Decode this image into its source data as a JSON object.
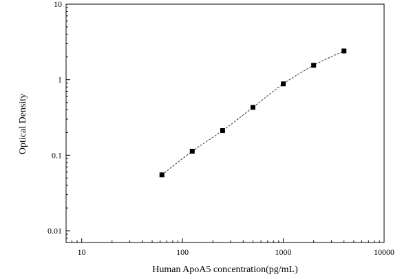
{
  "chart_data": {
    "type": "scatter",
    "title": "",
    "xlabel": "Human ApoA5 concentration(pg/mL)",
    "ylabel": "Optical Density",
    "x_scale": "log",
    "y_scale": "log",
    "xlim": [
      7,
      10000
    ],
    "ylim": [
      0.007,
      10
    ],
    "x_ticks": [
      10,
      100,
      1000,
      10000
    ],
    "x_tick_labels": [
      "10",
      "100",
      "1000",
      "10000"
    ],
    "y_ticks": [
      0.01,
      0.1,
      1,
      10
    ],
    "y_tick_labels": [
      "0.01",
      "0.1",
      "1",
      "10"
    ],
    "grid": false,
    "legend": "none",
    "marker": "square",
    "fit_curve": "dashed",
    "series": [
      {
        "x": [
          62.5,
          125,
          250,
          500,
          1000,
          2000,
          4000
        ],
        "y": [
          0.055,
          0.113,
          0.212,
          0.43,
          0.88,
          1.55,
          2.4
        ]
      }
    ]
  }
}
